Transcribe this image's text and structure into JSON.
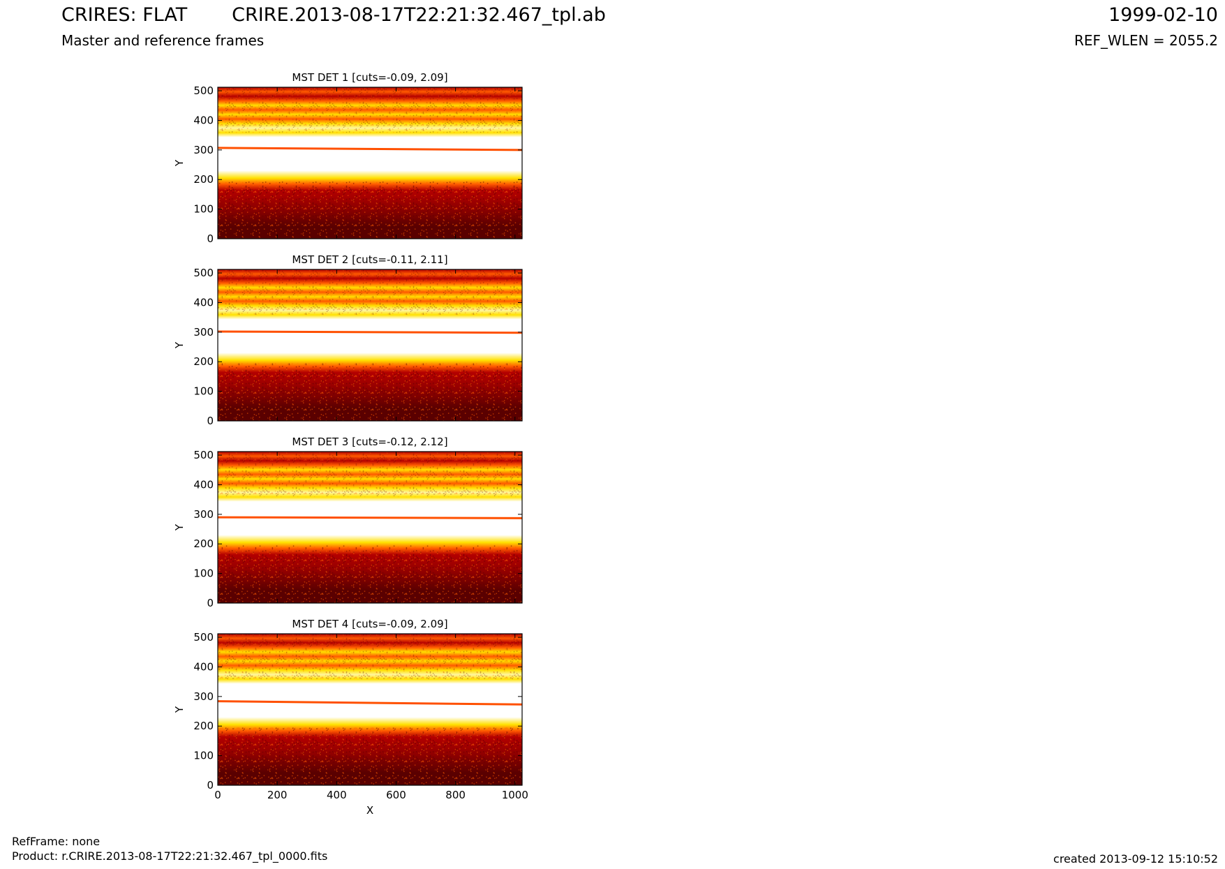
{
  "header": {
    "title_left": "CRIRES: FLAT",
    "title_center": "CRIRE.2013-08-17T22:21:32.467_tpl.ab",
    "title_right": "1999-02-10",
    "subtitle_left": "Master and reference frames",
    "subtitle_right": "REF_WLEN = 2055.2"
  },
  "footer": {
    "refframe": "RefFrame: none",
    "product": "Product: r.CRIRE.2013-08-17T22:21:32.467_tpl_0000.fits",
    "created": "created 2013-09-12 15:10:52"
  },
  "chart_data": [
    {
      "type": "heatmap",
      "title": "MST DET 1 [cuts=-0.09, 2.09]",
      "cuts": [
        -0.09,
        2.09
      ],
      "ylabel": "Y",
      "xlabel": "",
      "xlim": [
        0,
        1024
      ],
      "ylim": [
        0,
        512
      ],
      "yticks": [
        0,
        100,
        200,
        300,
        400,
        500
      ],
      "xticks": [],
      "order_line_y": [
        307,
        300
      ]
    },
    {
      "type": "heatmap",
      "title": "MST DET 2 [cuts=-0.11, 2.11]",
      "cuts": [
        -0.11,
        2.11
      ],
      "ylabel": "Y",
      "xlabel": "",
      "xlim": [
        0,
        1024
      ],
      "ylim": [
        0,
        512
      ],
      "yticks": [
        0,
        100,
        200,
        300,
        400,
        500
      ],
      "xticks": [],
      "order_line_y": [
        302,
        298
      ]
    },
    {
      "type": "heatmap",
      "title": "MST DET 3 [cuts=-0.12, 2.12]",
      "cuts": [
        -0.12,
        2.12
      ],
      "ylabel": "Y",
      "xlabel": "",
      "xlim": [
        0,
        1024
      ],
      "ylim": [
        0,
        512
      ],
      "yticks": [
        0,
        100,
        200,
        300,
        400,
        500
      ],
      "xticks": [],
      "order_line_y": [
        290,
        287
      ]
    },
    {
      "type": "heatmap",
      "title": "MST DET 4 [cuts=-0.09, 2.09]",
      "cuts": [
        -0.09,
        2.09
      ],
      "ylabel": "Y",
      "xlabel": "X",
      "xlim": [
        0,
        1024
      ],
      "ylim": [
        0,
        512
      ],
      "yticks": [
        0,
        100,
        200,
        300,
        400,
        500
      ],
      "xticks": [
        0,
        200,
        400,
        600,
        800,
        1000
      ],
      "order_line_y": [
        284,
        273
      ]
    }
  ],
  "colors": {
    "dark": "#5a0000",
    "red": "#b40000",
    "orange": "#ff5a00",
    "yellow": "#ffe000",
    "white": "#ffffff",
    "order_line": "#ff5000"
  }
}
